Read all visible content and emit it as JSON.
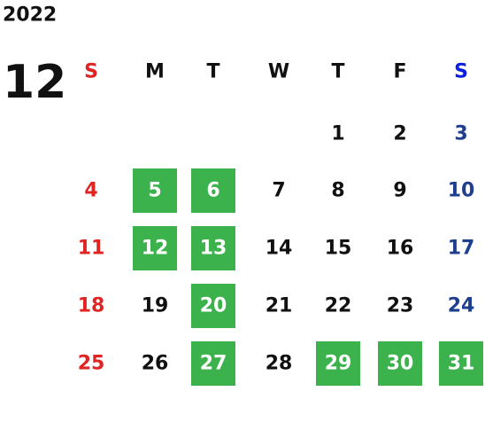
{
  "year": "2022",
  "month": "12",
  "weekdays": [
    "S",
    "M",
    "T",
    "W",
    "T",
    "F",
    "S"
  ],
  "header_colors": [
    "#e02424",
    "#111111",
    "#111111",
    "#111111",
    "#111111",
    "#111111",
    "#0a1fe0"
  ],
  "day_colors": [
    "#e02424",
    "#111111",
    "#111111",
    "#111111",
    "#111111",
    "#111111",
    "#1e3f8e"
  ],
  "highlight_color": "#3bb24b",
  "highlight_text_color": "#ffffff",
  "weeks": [
    [
      null,
      null,
      null,
      null,
      {
        "day": 1,
        "highlight": false
      },
      {
        "day": 2,
        "highlight": false
      },
      {
        "day": 3,
        "highlight": false
      }
    ],
    [
      {
        "day": 4,
        "highlight": false
      },
      {
        "day": 5,
        "highlight": true
      },
      {
        "day": 6,
        "highlight": true
      },
      {
        "day": 7,
        "highlight": false
      },
      {
        "day": 8,
        "highlight": false
      },
      {
        "day": 9,
        "highlight": false
      },
      {
        "day": 10,
        "highlight": false
      }
    ],
    [
      {
        "day": 11,
        "highlight": false
      },
      {
        "day": 12,
        "highlight": true
      },
      {
        "day": 13,
        "highlight": true
      },
      {
        "day": 14,
        "highlight": false
      },
      {
        "day": 15,
        "highlight": false
      },
      {
        "day": 16,
        "highlight": false
      },
      {
        "day": 17,
        "highlight": false
      }
    ],
    [
      {
        "day": 18,
        "highlight": false
      },
      {
        "day": 19,
        "highlight": false
      },
      {
        "day": 20,
        "highlight": true
      },
      {
        "day": 21,
        "highlight": false
      },
      {
        "day": 22,
        "highlight": false
      },
      {
        "day": 23,
        "highlight": false
      },
      {
        "day": 24,
        "highlight": false
      }
    ],
    [
      {
        "day": 25,
        "highlight": false
      },
      {
        "day": 26,
        "highlight": false
      },
      {
        "day": 27,
        "highlight": true
      },
      {
        "day": 28,
        "highlight": false
      },
      {
        "day": 29,
        "highlight": true
      },
      {
        "day": 30,
        "highlight": true
      },
      {
        "day": 31,
        "highlight": true
      }
    ]
  ]
}
